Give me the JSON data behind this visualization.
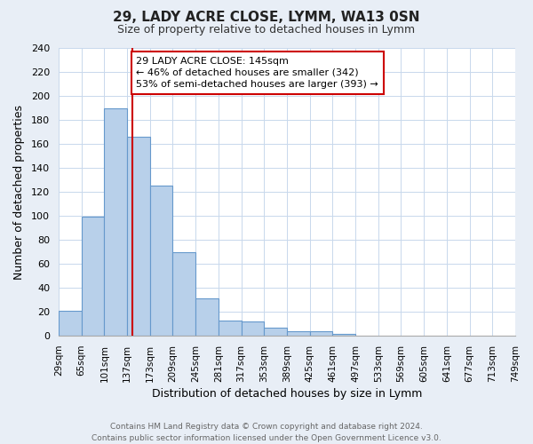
{
  "title_line1": "29, LADY ACRE CLOSE, LYMM, WA13 0SN",
  "title_line2": "Size of property relative to detached houses in Lymm",
  "xlabel": "Distribution of detached houses by size in Lymm",
  "ylabel": "Number of detached properties",
  "bin_edges": [
    29,
    65,
    101,
    137,
    173,
    209,
    245,
    281,
    317,
    353,
    389,
    425,
    461,
    497,
    533,
    569,
    605,
    641,
    677,
    713,
    749
  ],
  "bar_heights": [
    21,
    99,
    190,
    166,
    125,
    70,
    31,
    13,
    12,
    7,
    4,
    4,
    2,
    0,
    0,
    0,
    0,
    0,
    0,
    0
  ],
  "bar_color": "#b8d0ea",
  "bar_edge_color": "#6699cc",
  "grid_color": "#c8d8ec",
  "plot_bg_color": "#ffffff",
  "fig_bg_color": "#e8eef6",
  "vline_x": 145,
  "vline_color": "#cc0000",
  "annotation_text": "29 LADY ACRE CLOSE: 145sqm\n← 46% of detached houses are smaller (342)\n53% of semi-detached houses are larger (393) →",
  "ylim": [
    0,
    240
  ],
  "yticks": [
    0,
    20,
    40,
    60,
    80,
    100,
    120,
    140,
    160,
    180,
    200,
    220,
    240
  ],
  "footer_line1": "Contains HM Land Registry data © Crown copyright and database right 2024.",
  "footer_line2": "Contains public sector information licensed under the Open Government Licence v3.0."
}
